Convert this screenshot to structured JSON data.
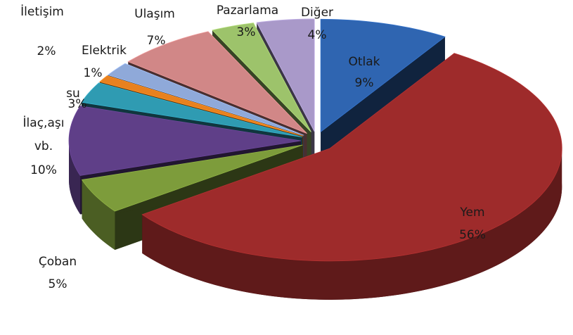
{
  "chart_data": {
    "type": "pie3d",
    "categories": [
      "Otlak",
      "Yem",
      "Çoban",
      "İlaç,aşı vb.",
      "su",
      "Elektrik",
      "İletişim",
      "Ulaşım",
      "Pazarlama",
      "Diğer"
    ],
    "values": [
      9,
      56,
      5,
      10,
      3,
      1,
      2,
      7,
      3,
      4
    ],
    "value_labels": [
      "9%",
      "56%",
      "5%",
      "10%",
      "3%",
      "1%",
      "2%",
      "7%",
      "3%",
      "4%"
    ],
    "colors": [
      "#2f65b1",
      "#9e2b2b",
      "#7d9c3b",
      "#5f3f88",
      "#2f9bb2",
      "#e8811f",
      "#8fa9d9",
      "#d18787",
      "#9dc36b",
      "#a999c9"
    ]
  }
}
